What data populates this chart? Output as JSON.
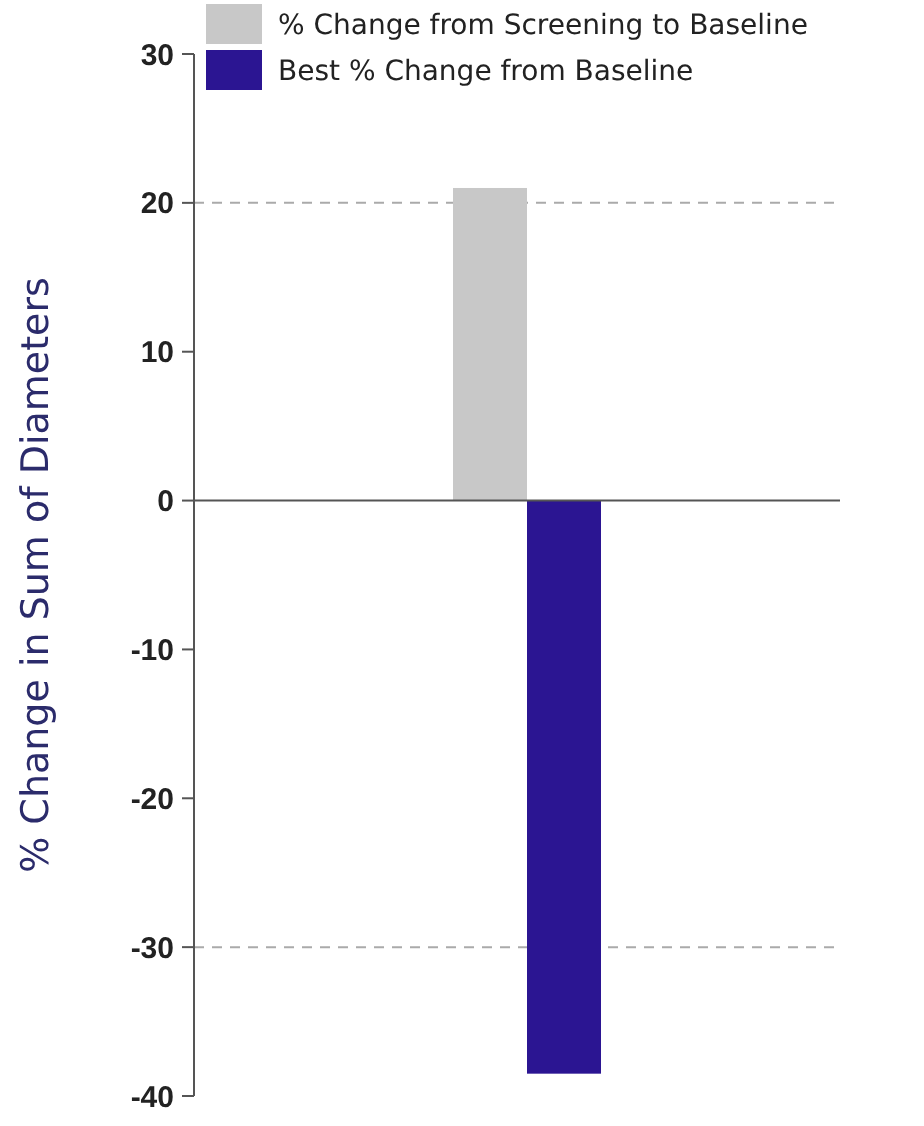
{
  "chart_data": {
    "type": "bar",
    "ylabel": "% Change in Sum of Diameters",
    "categories": [
      null
    ],
    "series": [
      {
        "name": "% Change from Screening to Baseline",
        "color": "#c8c8c8",
        "values": [
          21
        ]
      },
      {
        "name": "Best % Change from Baseline",
        "color": "#2b1592",
        "values": [
          -38.5
        ]
      }
    ],
    "ylim": [
      -40,
      30
    ],
    "yticks": [
      -40,
      -30,
      -20,
      -10,
      0,
      10,
      20,
      30
    ],
    "grid": false,
    "legend": "top",
    "ref_lines": [
      {
        "axis": "y",
        "value": 20,
        "color": "#aaaaaa",
        "line_style": "dashed"
      },
      {
        "axis": "y",
        "value": -30,
        "color": "#aaaaaa",
        "line_style": "dashed"
      }
    ]
  }
}
